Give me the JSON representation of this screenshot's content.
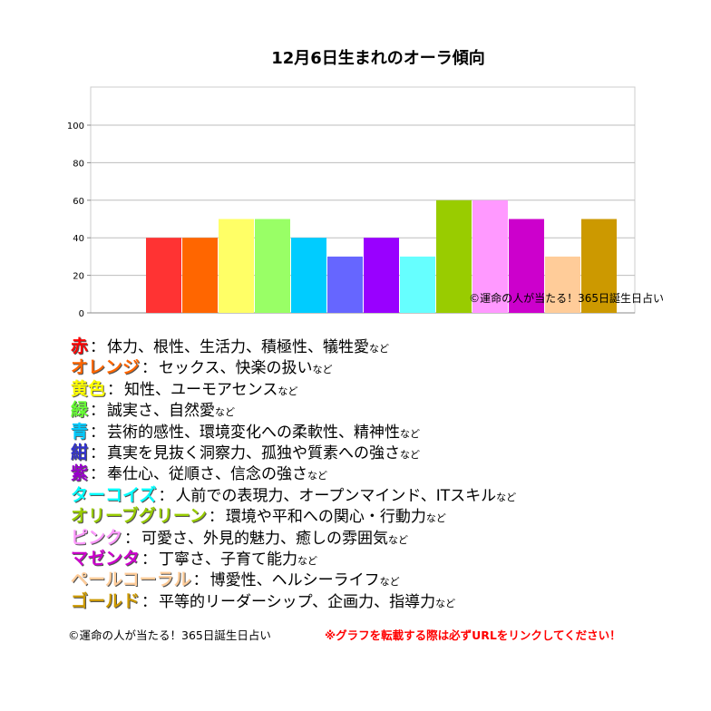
{
  "chart_data": {
    "type": "bar",
    "title": "12月6日生まれのオーラ傾向",
    "categories": [
      "赤",
      "オレンジ",
      "黄色",
      "緑",
      "青",
      "紺",
      "紫",
      "ターコイズ",
      "オリーブグリーン",
      "ピンク",
      "マゼンタ",
      "ペールコーラル",
      "ゴールド"
    ],
    "values": [
      40,
      40,
      50,
      50,
      40,
      30,
      40,
      30,
      60,
      60,
      50,
      30,
      50
    ],
    "colors": [
      "#ff3333",
      "#ff6600",
      "#ffff66",
      "#99ff66",
      "#00ccff",
      "#6666ff",
      "#9900ff",
      "#66ffff",
      "#99cc00",
      "#ff99ff",
      "#cc00cc",
      "#ffcc99",
      "#cc9900"
    ],
    "yticks": [
      0,
      20,
      40,
      60,
      80,
      100
    ],
    "ylim": [
      0,
      100
    ],
    "grid": true,
    "watermark": "©運命の人が当たる！365日誕生日占い"
  },
  "legend": [
    {
      "name": "赤",
      "color": "#ff0000",
      "desc": "体力、根性、生活力、積極性、犠牲愛",
      "suffix": "など"
    },
    {
      "name": "オレンジ",
      "color": "#ff6600",
      "desc": "セックス、快楽の扱い",
      "suffix": "など"
    },
    {
      "name": "黄色",
      "color": "#ffff00",
      "desc": "知性、ユーモアセンス",
      "suffix": "など"
    },
    {
      "name": "緑",
      "color": "#66ff33",
      "desc": "誠実さ、自然愛",
      "suffix": "など"
    },
    {
      "name": "青",
      "color": "#00ccff",
      "desc": "芸術的感性、環境変化への柔軟性、精神性",
      "suffix": "など"
    },
    {
      "name": "紺",
      "color": "#3333cc",
      "desc": "真実を見抜く洞察力、孤独や質素への強さ",
      "suffix": "など"
    },
    {
      "name": "紫",
      "color": "#9900cc",
      "desc": "奉仕心、従順さ、信念の強さ",
      "suffix": "など"
    },
    {
      "name": "ターコイズ",
      "color": "#00ffff",
      "desc": "人前での表現力、オープンマインド、ITスキル",
      "suffix": "など"
    },
    {
      "name": "オリーブグリーン",
      "color": "#99cc00",
      "desc": "環境や平和への関心・行動力",
      "suffix": "など"
    },
    {
      "name": "ピンク",
      "color": "#ff99ff",
      "desc": "可愛さ、外見的魅力、癒しの雰囲気",
      "suffix": "など"
    },
    {
      "name": "マゼンタ",
      "color": "#cc00cc",
      "desc": "丁寧さ、子育て能力",
      "suffix": "など"
    },
    {
      "name": "ペールコーラル",
      "color": "#ffcc99",
      "desc": "博愛性、ヘルシーライフ",
      "suffix": "など"
    },
    {
      "name": "ゴールド",
      "color": "#cc9900",
      "desc": "平等的リーダーシップ、企画力、指導力",
      "suffix": "など"
    }
  ],
  "legend_sep": "：",
  "footer": {
    "copyright": "©運命の人が当たる！365日誕生日占い",
    "warning": "※グラフを転載する際は必ずURLをリンクしてください！"
  }
}
